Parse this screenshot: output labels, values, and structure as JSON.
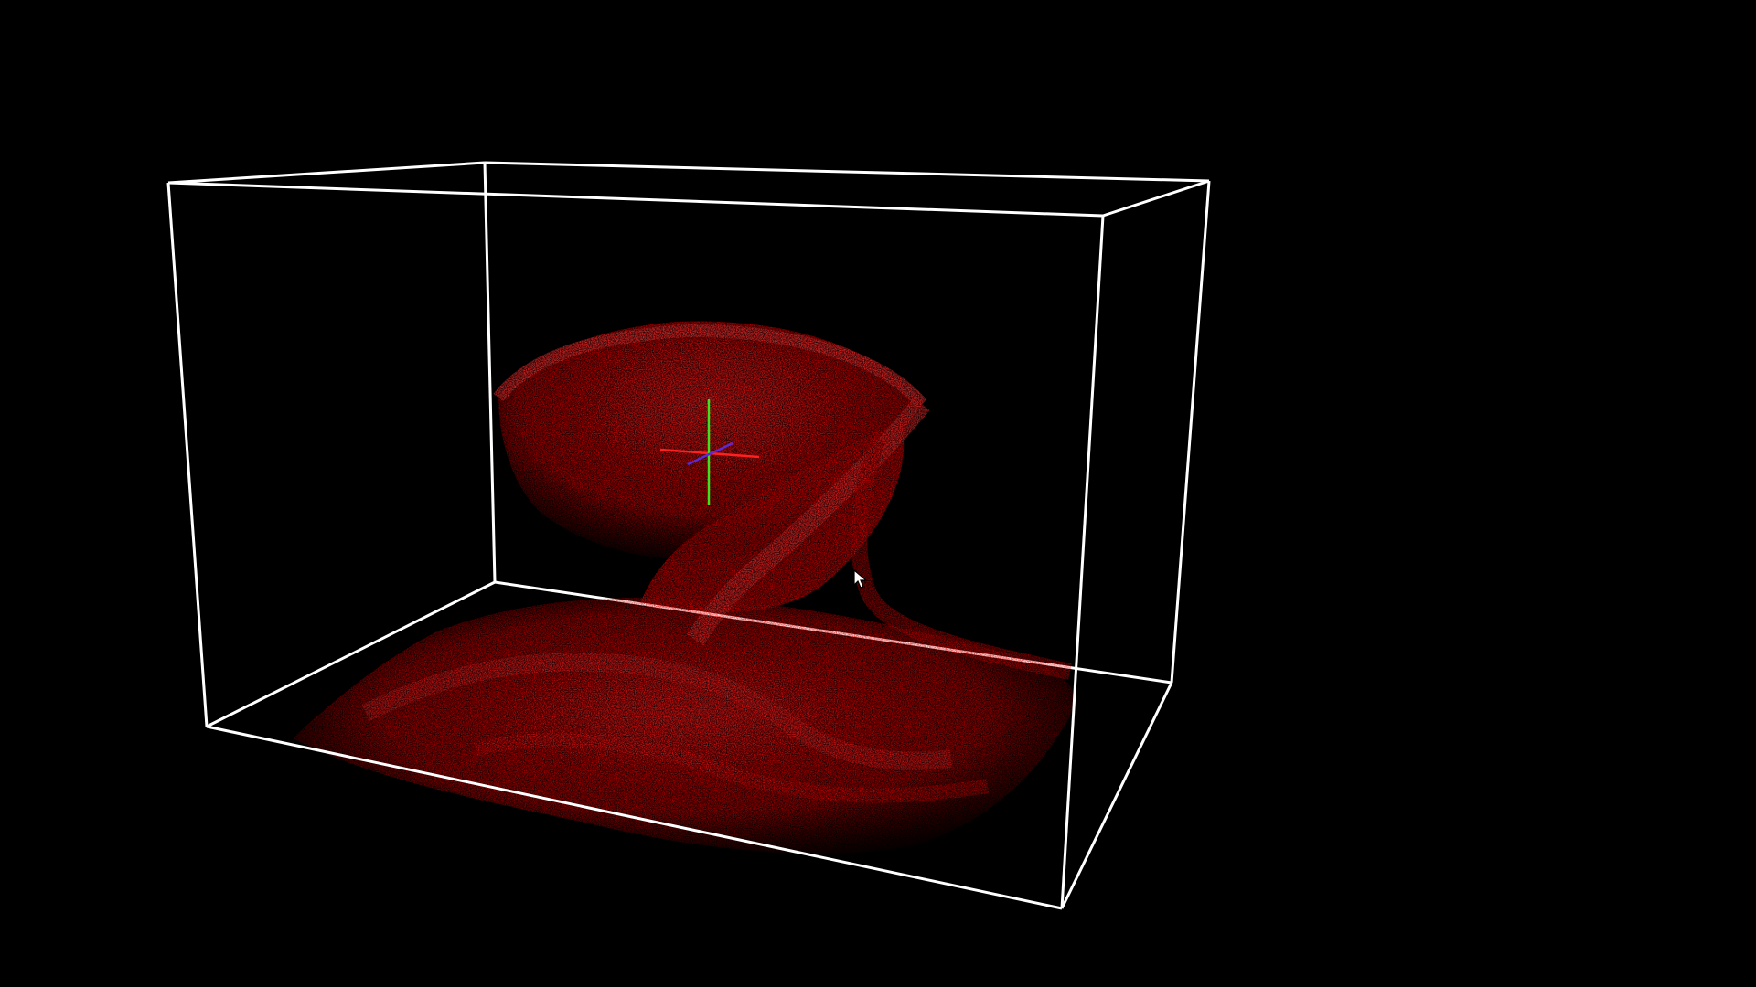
{
  "viewer": {
    "background_color": "#000000",
    "bounding_box_color": "#ffffff",
    "volume_color": "#ff0000",
    "axes": {
      "x_color": "#ff2020",
      "y_color": "#40e020",
      "z_color": "#5a2ad8"
    },
    "cursor_icon": "arrow-cursor-icon"
  }
}
